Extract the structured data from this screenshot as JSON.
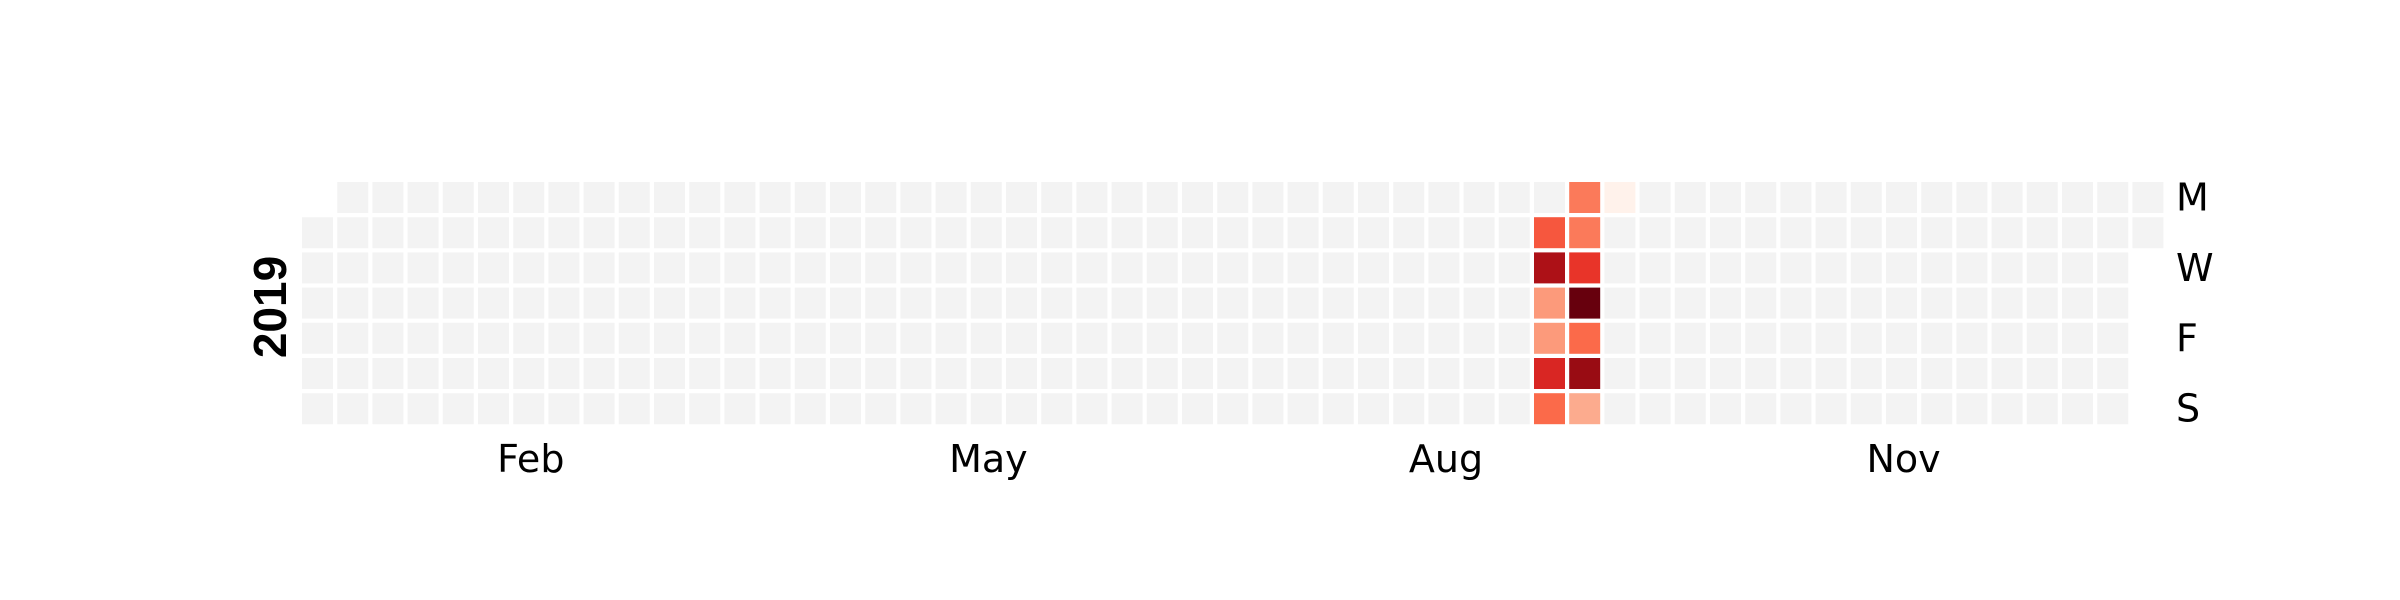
{
  "chart_data": {
    "type": "heatmap",
    "subtype": "calendar-heatmap",
    "year": "2019",
    "colormap": "Reds",
    "weekday_labels": [
      "M",
      "W",
      "F",
      "S"
    ],
    "weekday_label_rows": [
      0,
      2,
      4,
      6
    ],
    "month_labels": [
      "Feb",
      "May",
      "Aug",
      "Nov"
    ],
    "month_label_weeks": [
      6.5,
      19.5,
      32.5,
      45.5
    ],
    "num_weeks": 53,
    "first_day_row": 1,
    "last_day_row": 1,
    "empty_color": "#f3f3f3",
    "week_values": [
      {
        "week": 35,
        "days": [
          0,
          0.55,
          0.85,
          0.35,
          0.35,
          0.7,
          0.5
        ]
      },
      {
        "week": 36,
        "days": [
          0.45,
          0.45,
          0.65,
          1.0,
          0.5,
          0.9,
          0.3
        ]
      },
      {
        "week": 37,
        "days": [
          0.02,
          null,
          null,
          null,
          null,
          null,
          null
        ]
      }
    ]
  }
}
